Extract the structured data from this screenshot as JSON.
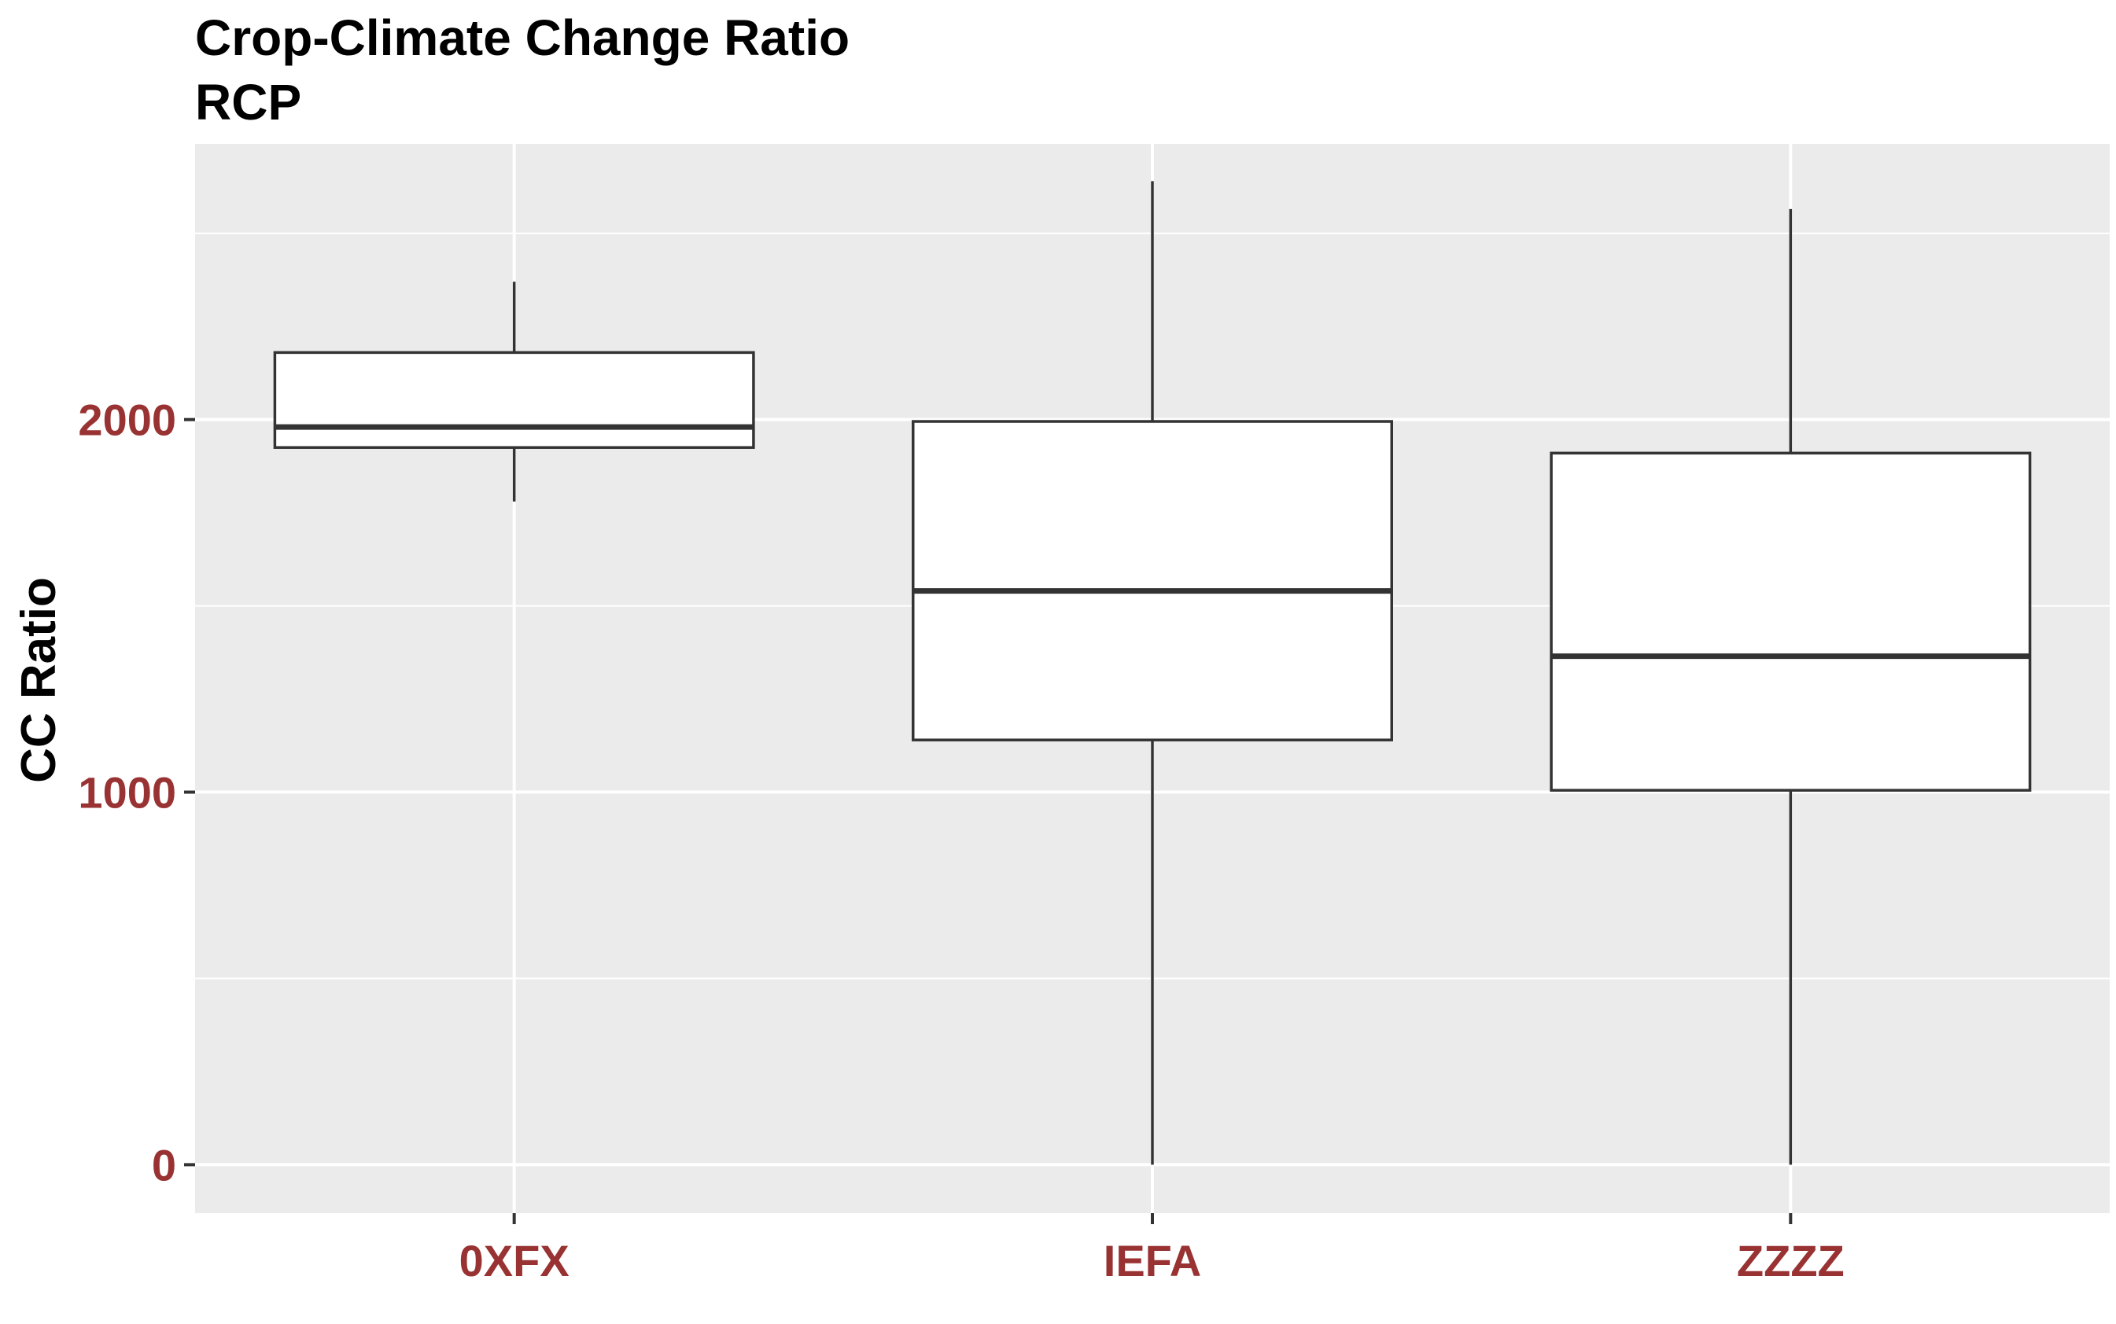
{
  "chart_data": {
    "type": "boxplot",
    "title": "Crop-Climate Change Ratio",
    "subtitle": "RCP",
    "xlabel": "",
    "ylabel": "CC Ratio",
    "ylim": [
      -130,
      2740
    ],
    "y_major_ticks": [
      0,
      1000,
      2000
    ],
    "y_minor_ticks": [
      500,
      1500,
      2500
    ],
    "grid": true,
    "categories": [
      "0XFX",
      "IEFA",
      "ZZZZ"
    ],
    "boxes": [
      {
        "category": "0XFX",
        "whisker_low": 1780,
        "q1": 1925,
        "median": 1980,
        "q3": 2180,
        "whisker_high": 2370
      },
      {
        "category": "IEFA",
        "whisker_low": 0,
        "q1": 1140,
        "median": 1540,
        "q3": 1995,
        "whisker_high": 2640
      },
      {
        "category": "ZZZZ",
        "whisker_low": 0,
        "q1": 1005,
        "median": 1365,
        "q3": 1910,
        "whisker_high": 2565
      }
    ],
    "colors": {
      "panel_background": "#EBEBEB",
      "gridline": "#FFFFFF",
      "box_fill": "#FFFFFF",
      "box_stroke": "#333333",
      "tick_label": "#993333",
      "tick_mark": "#333333",
      "text": "#000000"
    }
  }
}
